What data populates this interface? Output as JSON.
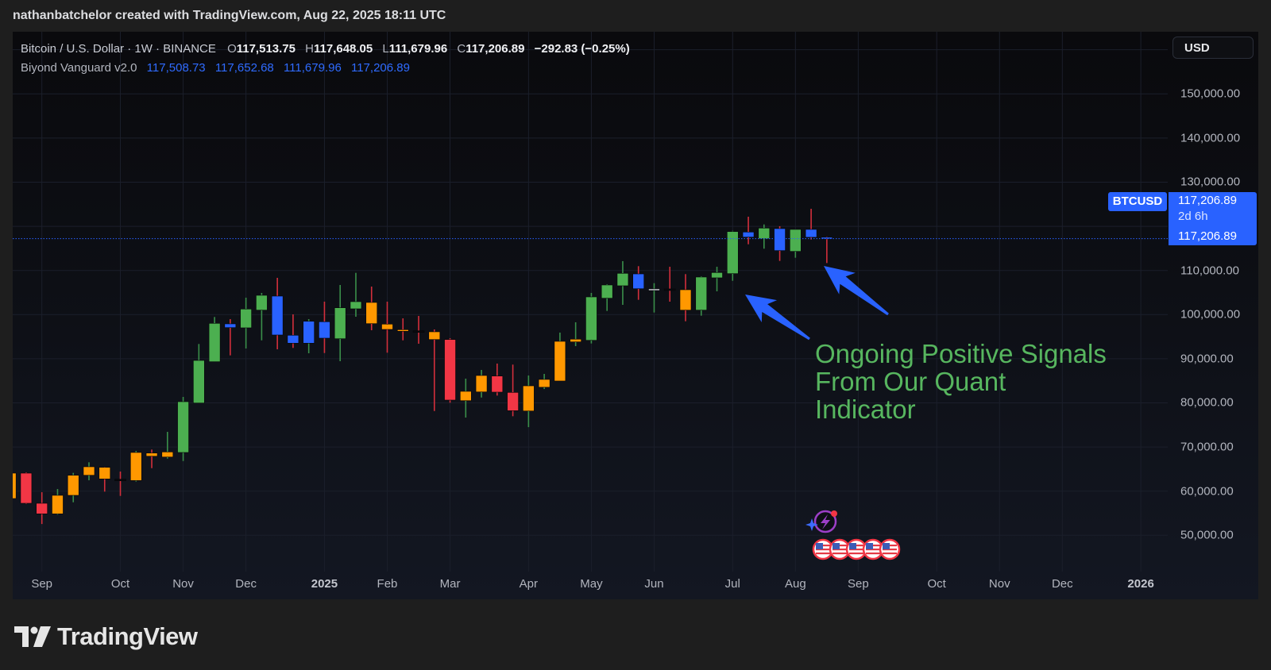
{
  "header": {
    "attribution": "nathanbatchelor created with TradingView.com, Aug 22, 2025 18:11 UTC"
  },
  "legend": {
    "symbol": "Bitcoin / U.S. Dollar · 1W · BINANCE",
    "ohlc": [
      {
        "label": "O",
        "value": "117,513.75"
      },
      {
        "label": "H",
        "value": "117,648.05"
      },
      {
        "label": "L",
        "value": "111,679.96"
      },
      {
        "label": "C",
        "value": "117,206.89"
      }
    ],
    "change": "−292.83 (−0.25%)",
    "indicator": {
      "name": "Biyond Vanguard v2.0",
      "values": [
        "117,508.73",
        "117,652.68",
        "111,679.96",
        "117,206.89"
      ]
    }
  },
  "price_scale": {
    "currency_button": "USD"
  },
  "last_price": {
    "symbol_tag": "BTCUSD",
    "price": "117,206.89",
    "countdown": "2d 6h",
    "price_repeat": "117,206.89",
    "value": 117206.89
  },
  "annotation": {
    "lines": [
      "Ongoing Positive Signals",
      "From Our Quant",
      "Indicator"
    ]
  },
  "events": {
    "icons": [
      "lightning-event-icon",
      "us-flag-icon",
      "us-flag-icon",
      "us-flag-icon",
      "us-flag-icon",
      "us-flag-icon"
    ]
  },
  "branding": {
    "logo_text": "TradingView"
  },
  "colors": {
    "green": "#4caf50",
    "blue": "#2962ff",
    "orange": "#ff9800",
    "red": "#f23645",
    "white": "#d1d4dc",
    "black": "#0b0b0f",
    "wick_up": "#3a8f4a",
    "wick_down": "#d32f3c",
    "price_line": "#2962ff",
    "annotation_text": "#57b65f",
    "arrow": "#2962ff"
  },
  "chart_data": {
    "type": "candlestick",
    "interval": "1W",
    "xlim": [
      "2024-08-20",
      "2026-01-17"
    ],
    "ylim": [
      41780,
      164080
    ],
    "grid": true,
    "columns": [
      "date",
      "open",
      "high",
      "low",
      "close",
      "body_color"
    ],
    "candles": [
      [
        "2024-08-19",
        58330,
        64260,
        58000,
        64080,
        "orange"
      ],
      [
        "2024-08-26",
        64080,
        64260,
        57100,
        57250,
        "red"
      ],
      [
        "2024-09-02",
        57250,
        59760,
        52550,
        54860,
        "red"
      ],
      [
        "2024-09-09",
        54860,
        60480,
        54670,
        59050,
        "orange"
      ],
      [
        "2024-09-16",
        59050,
        64140,
        57480,
        63600,
        "orange"
      ],
      [
        "2024-09-23",
        63600,
        66540,
        62460,
        65520,
        "orange"
      ],
      [
        "2024-09-30",
        65400,
        65500,
        59890,
        62770,
        "orange"
      ],
      [
        "2024-10-07",
        62700,
        64440,
        58920,
        62640,
        "black"
      ],
      [
        "2024-10-14",
        62410,
        69120,
        62160,
        68760,
        "orange"
      ],
      [
        "2024-10-21",
        68630,
        69420,
        65210,
        67910,
        "orange"
      ],
      [
        "2024-10-28",
        67730,
        73430,
        67370,
        68880,
        "orange"
      ],
      [
        "2024-11-04",
        68760,
        81350,
        66830,
        80270,
        "green"
      ],
      [
        "2024-11-11",
        79960,
        93340,
        79960,
        89620,
        "green"
      ],
      [
        "2024-11-18",
        89320,
        99460,
        89320,
        98020,
        "green"
      ],
      [
        "2024-11-25",
        97900,
        98970,
        90760,
        97050,
        "blue"
      ],
      [
        "2024-12-02",
        97000,
        103830,
        92320,
        101260,
        "green"
      ],
      [
        "2024-12-09",
        101010,
        104910,
        94170,
        104370,
        "green"
      ],
      [
        "2024-12-16",
        104190,
        108330,
        92140,
        95380,
        "blue"
      ],
      [
        "2024-12-23",
        95320,
        100050,
        92450,
        93520,
        "blue"
      ],
      [
        "2024-12-30",
        93520,
        98970,
        91240,
        98490,
        "blue"
      ],
      [
        "2025-01-06",
        98380,
        102930,
        91290,
        94660,
        "blue"
      ],
      [
        "2025-01-13",
        94530,
        106710,
        89440,
        101550,
        "green"
      ],
      [
        "2025-01-20",
        101310,
        109460,
        99510,
        102930,
        "green"
      ],
      [
        "2025-01-27",
        102750,
        106350,
        96460,
        97950,
        "orange"
      ],
      [
        "2025-02-03",
        97840,
        102930,
        91370,
        96640,
        "orange"
      ],
      [
        "2025-02-10",
        96580,
        99150,
        94170,
        96330,
        "orange"
      ],
      [
        "2025-02-17",
        96330,
        99700,
        93400,
        96150,
        "black"
      ],
      [
        "2025-02-24",
        96100,
        96640,
        78160,
        94350,
        "orange"
      ],
      [
        "2025-03-03",
        94350,
        94660,
        80030,
        80630,
        "red"
      ],
      [
        "2025-03-10",
        80500,
        85490,
        76670,
        82610,
        "orange"
      ],
      [
        "2025-03-17",
        82480,
        87460,
        81210,
        86200,
        "orange"
      ],
      [
        "2025-03-24",
        86080,
        88900,
        81650,
        82430,
        "red"
      ],
      [
        "2025-03-31",
        82370,
        88670,
        76970,
        78230,
        "red"
      ],
      [
        "2025-04-07",
        78160,
        86200,
        74500,
        83860,
        "orange"
      ],
      [
        "2025-04-14",
        83540,
        86560,
        83140,
        85310,
        "orange"
      ],
      [
        "2025-04-21",
        84950,
        95920,
        84950,
        93940,
        "orange"
      ],
      [
        "2025-04-28",
        93820,
        98260,
        92860,
        94430,
        "orange"
      ],
      [
        "2025-05-05",
        94170,
        104910,
        93460,
        104010,
        "green"
      ],
      [
        "2025-05-12",
        103710,
        106890,
        100830,
        106710,
        "green"
      ],
      [
        "2025-05-19",
        106530,
        112110,
        102210,
        109350,
        "green"
      ],
      [
        "2025-05-26",
        109220,
        110970,
        103350,
        105860,
        "blue"
      ],
      [
        "2025-06-02",
        105810,
        107120,
        100470,
        105820,
        "white"
      ],
      [
        "2025-06-09",
        105820,
        110840,
        102930,
        105750,
        "black"
      ],
      [
        "2025-06-16",
        105630,
        109170,
        98490,
        101010,
        "orange"
      ],
      [
        "2025-06-23",
        101010,
        108690,
        99750,
        108510,
        "green"
      ],
      [
        "2025-06-30",
        108330,
        110840,
        105270,
        109530,
        "green"
      ],
      [
        "2025-07-07",
        109280,
        118990,
        107660,
        118810,
        "green"
      ],
      [
        "2025-07-14",
        118700,
        122180,
        115930,
        117550,
        "blue"
      ],
      [
        "2025-07-21",
        117190,
        120430,
        114930,
        119600,
        "green"
      ],
      [
        "2025-07-28",
        119480,
        120020,
        112160,
        114500,
        "blue"
      ],
      [
        "2025-08-04",
        114320,
        119300,
        112880,
        119300,
        "green"
      ],
      [
        "2025-08-11",
        119300,
        123970,
        117010,
        117513.75,
        "blue"
      ],
      [
        "2025-08-18",
        117513.75,
        117648.05,
        111679.96,
        117206.89,
        "blue"
      ]
    ],
    "x_ticks": [
      {
        "label": "Sep",
        "date": "2024-09-02"
      },
      {
        "label": "Oct",
        "date": "2024-10-07"
      },
      {
        "label": "Nov",
        "date": "2024-11-04"
      },
      {
        "label": "Dec",
        "date": "2024-12-02"
      },
      {
        "label": "2025",
        "date": "2025-01-06",
        "year": true
      },
      {
        "label": "Feb",
        "date": "2025-02-03"
      },
      {
        "label": "Mar",
        "date": "2025-03-03"
      },
      {
        "label": "Apr",
        "date": "2025-04-07"
      },
      {
        "label": "May",
        "date": "2025-05-05"
      },
      {
        "label": "Jun",
        "date": "2025-06-02"
      },
      {
        "label": "Jul",
        "date": "2025-07-07"
      },
      {
        "label": "Aug",
        "date": "2025-08-04"
      },
      {
        "label": "Sep",
        "date": "2025-09-01"
      },
      {
        "label": "Oct",
        "date": "2025-10-06"
      },
      {
        "label": "Nov",
        "date": "2025-11-03"
      },
      {
        "label": "Dec",
        "date": "2025-12-01"
      },
      {
        "label": "2026",
        "date": "2026-01-05",
        "year": true
      }
    ],
    "y_ticks": [
      {
        "value": 150000,
        "label": "150,000.00"
      },
      {
        "value": 140000,
        "label": "140,000.00"
      },
      {
        "value": 130000,
        "label": "130,000.00"
      },
      {
        "value": 110000,
        "label": "110,000.00"
      },
      {
        "value": 100000,
        "label": "100,000.00"
      },
      {
        "value": 90000,
        "label": "90,000.00"
      },
      {
        "value": 80000,
        "label": "80,000.00"
      },
      {
        "value": 70000,
        "label": "70,000.00"
      },
      {
        "value": 60000,
        "label": "60,000.00"
      },
      {
        "value": 50000,
        "label": "50,000.00"
      }
    ],
    "y_grid_step": 10000
  }
}
